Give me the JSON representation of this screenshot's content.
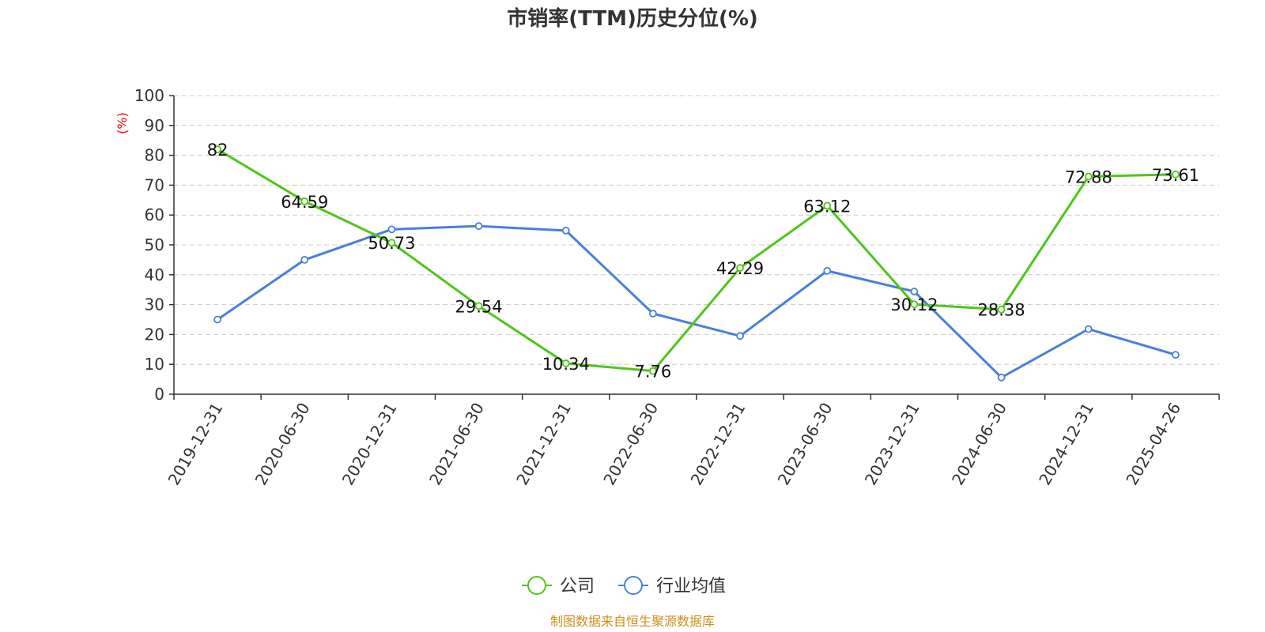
{
  "chart_data": {
    "type": "line",
    "title": "市销率(TTM)历史分位(%)",
    "ylabel": "(%)",
    "ylim": [
      0,
      100
    ],
    "yticks": [
      "0",
      "10",
      "20",
      "30",
      "40",
      "50",
      "60",
      "70",
      "80",
      "90",
      "100"
    ],
    "grid": true,
    "legend_position": "bottom",
    "categories": [
      "2019-12-31",
      "2020-06-30",
      "2020-12-31",
      "2021-06-30",
      "2021-12-31",
      "2022-06-30",
      "2022-12-31",
      "2023-06-30",
      "2023-12-31",
      "2024-06-30",
      "2024-12-31",
      "2025-04-26"
    ],
    "series": [
      {
        "name": "公司",
        "color": "#52c41a",
        "values": [
          82,
          64.59,
          50.73,
          29.54,
          10.34,
          7.76,
          42.29,
          63.12,
          30.12,
          28.38,
          72.88,
          73.61
        ],
        "labels": [
          "82",
          "64.59",
          "50.73",
          "29.54",
          "10.34",
          "7.76",
          "42.29",
          "63.12",
          "30.12",
          "28.38",
          "72.88",
          "73.61"
        ]
      },
      {
        "name": "行业均值",
        "color": "#4a7fdb",
        "values": [
          25,
          45,
          55.2,
          56.3,
          54.8,
          27,
          19.5,
          41.3,
          34.4,
          5.6,
          21.8,
          13.2
        ]
      }
    ]
  },
  "source_note": "制图数据来自恒生聚源数据库"
}
